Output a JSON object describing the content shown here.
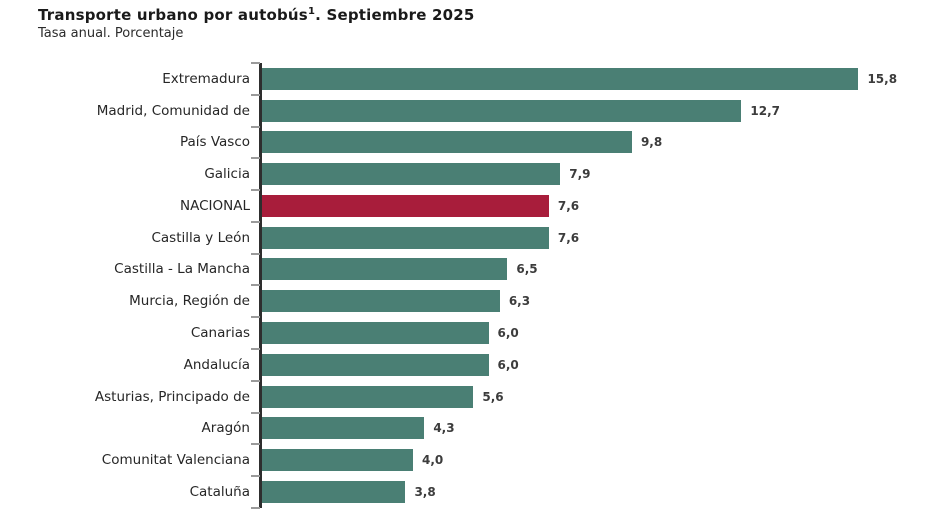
{
  "header": {
    "title": "Transporte urbano por autobús",
    "title_superscript": "1",
    "title_rest": ". Septiembre 2025",
    "subtitle": "Tasa anual. Porcentaje"
  },
  "chart_data": {
    "type": "bar",
    "orientation": "horizontal",
    "title": "Transporte urbano por autobús¹. Septiembre 2025",
    "subtitle": "Tasa anual. Porcentaje",
    "categories": [
      "Extremadura",
      "Madrid, Comunidad de",
      "País Vasco",
      "Galicia",
      "NACIONAL",
      "Castilla y León",
      "Castilla - La Mancha",
      "Murcia, Región de",
      "Canarias",
      "Andalucía",
      "Asturias, Principado de",
      "Aragón",
      "Comunitat Valenciana",
      "Cataluña"
    ],
    "values": [
      15.8,
      12.7,
      9.8,
      7.9,
      7.6,
      7.6,
      6.5,
      6.3,
      6.0,
      6.0,
      5.6,
      4.3,
      4.0,
      3.8
    ],
    "value_labels": [
      "15,8",
      "12,7",
      "9,8",
      "7,9",
      "7,6",
      "7,6",
      "6,5",
      "6,3",
      "6,0",
      "6,0",
      "5,6",
      "4,3",
      "4,0",
      "3,8"
    ],
    "highlight_index": 4,
    "highlight_category": "NACIONAL",
    "colors": {
      "bar": "#4A7F74",
      "highlight": "#A81D3B",
      "axis": "#2e2e2e",
      "tick": "#9a9a9a"
    },
    "xlim": [
      0,
      16
    ],
    "grid": false,
    "legend": "none"
  }
}
